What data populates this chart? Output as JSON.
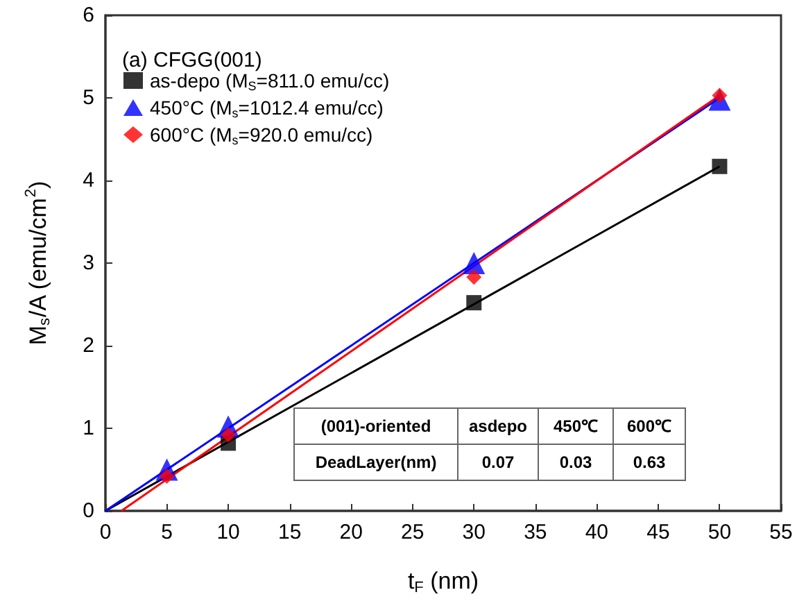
{
  "chart_data": {
    "type": "scatter",
    "xlabel": "t$_{F}$ (nm)",
    "ylabel": "M$_{s}$/A (emu/cm$^{2}$)",
    "annotations": [
      "(a) CFGG(001)",
      "(001)-oriented",
      "asdepo",
      "450℃",
      "600℃",
      "DeadLayer(nm)",
      "0.07",
      "0.03",
      "0.63"
    ],
    "x": [
      5,
      10,
      30,
      50
    ],
    "series": [
      {
        "name": "as-depo (M$_{S}$=811.0 emu/cc)",
        "color": "#000000",
        "marker": "square",
        "values": [
          null,
          0.82,
          2.52,
          4.17
        ]
      },
      {
        "name": "450°C (M$_{s}$=1012.4 emu/cc)",
        "color": "#0000ff",
        "marker": "triangle",
        "values": [
          0.5,
          1.02,
          3.0,
          4.98
        ]
      },
      {
        "name": "600°C (M$_{s}$=920.0 emu/cc)",
        "color": "#ff0000",
        "marker": "diamond",
        "values": [
          0.42,
          0.92,
          2.83,
          5.03
        ]
      },
      {
        "type": "line",
        "color": "#000000",
        "marker": "none",
        "x": [
          0,
          50
        ],
        "values": [
          0,
          4.17
        ]
      },
      {
        "type": "line",
        "color": "#0000ff",
        "marker": "none",
        "x": [
          0,
          50
        ],
        "values": [
          0,
          5.0
        ]
      },
      {
        "type": "line",
        "color": "#ff0000",
        "marker": "none",
        "x": [
          1.3,
          50
        ],
        "values": [
          0,
          5.03
        ]
      }
    ],
    "xlim": [
      0,
      55
    ],
    "xticks": [
      0,
      5,
      10,
      15,
      20,
      25,
      30,
      35,
      40,
      45,
      50,
      55
    ],
    "ylim": [
      0,
      6
    ],
    "yticks": [
      0,
      1,
      2,
      3,
      4,
      5,
      6
    ],
    "grid": false,
    "legend": "top left"
  }
}
